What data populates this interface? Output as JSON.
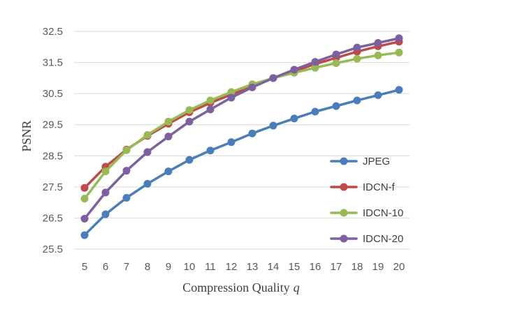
{
  "chart_data": {
    "type": "line",
    "title": "",
    "xlabel": "Compression Quality",
    "xlabel_var": "q",
    "ylabel": "PSNR",
    "categories": [
      5,
      6,
      7,
      8,
      9,
      10,
      11,
      12,
      13,
      14,
      15,
      16,
      17,
      18,
      19,
      20
    ],
    "ylim": [
      25.5,
      32.5
    ],
    "yticks": [
      "25.5",
      "26.5",
      "27.5",
      "28.5",
      "29.5",
      "30.5",
      "31.5",
      "32.5"
    ],
    "grid": "horizontal",
    "legend_position": "right",
    "series": [
      {
        "name": "JPEG",
        "color": "#4a7ebb",
        "values": [
          25.95,
          26.62,
          27.15,
          27.6,
          28.0,
          28.37,
          28.67,
          28.94,
          29.22,
          29.47,
          29.7,
          29.92,
          30.1,
          30.28,
          30.45,
          30.62
        ]
      },
      {
        "name": "IDCN-f",
        "color": "#be4b48",
        "values": [
          27.47,
          28.15,
          28.7,
          29.14,
          29.53,
          29.9,
          30.2,
          30.47,
          30.75,
          31.0,
          31.22,
          31.45,
          31.65,
          31.85,
          32.02,
          32.17
        ]
      },
      {
        "name": "IDCN-10",
        "color": "#98b954",
        "values": [
          27.12,
          28.0,
          28.68,
          29.17,
          29.6,
          29.97,
          30.28,
          30.55,
          30.8,
          31.0,
          31.17,
          31.33,
          31.48,
          31.62,
          31.73,
          31.82
        ]
      },
      {
        "name": "IDCN-20",
        "color": "#7d60a0",
        "values": [
          26.48,
          27.32,
          28.02,
          28.62,
          29.12,
          29.6,
          29.99,
          30.37,
          30.7,
          31.0,
          31.27,
          31.52,
          31.76,
          31.98,
          32.13,
          32.28
        ]
      }
    ]
  }
}
